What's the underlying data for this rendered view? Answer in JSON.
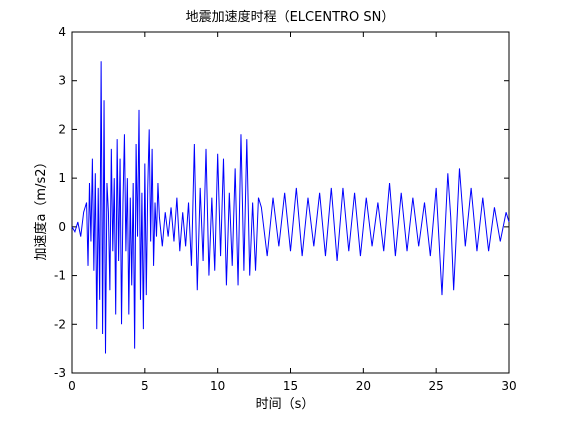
{
  "chart_data": {
    "type": "line",
    "title": "地震加速度时程（ELCENTRO SN）",
    "xlabel": "时间（s）",
    "ylabel": "加速度a（m/s2）",
    "xlim": [
      0,
      30
    ],
    "ylim": [
      -3,
      4
    ],
    "xticks": [
      0,
      5,
      10,
      15,
      20,
      25,
      30
    ],
    "yticks": [
      -3,
      -2,
      -1,
      0,
      1,
      2,
      3,
      4
    ],
    "grid": false,
    "legend": "none",
    "series": [
      {
        "color": "#0000ff",
        "x": [
          0,
          0.2,
          0.4,
          0.6,
          0.8,
          1.0,
          1.1,
          1.2,
          1.3,
          1.4,
          1.5,
          1.6,
          1.7,
          1.8,
          1.9,
          2.0,
          2.1,
          2.2,
          2.3,
          2.4,
          2.5,
          2.6,
          2.7,
          2.8,
          2.9,
          3.0,
          3.1,
          3.2,
          3.3,
          3.4,
          3.5,
          3.6,
          3.7,
          3.8,
          3.9,
          4.0,
          4.1,
          4.2,
          4.3,
          4.4,
          4.5,
          4.6,
          4.7,
          4.8,
          4.9,
          5.0,
          5.1,
          5.2,
          5.3,
          5.4,
          5.5,
          5.6,
          5.7,
          5.8,
          5.9,
          6.0,
          6.2,
          6.4,
          6.6,
          6.8,
          7.0,
          7.2,
          7.4,
          7.6,
          7.8,
          8.0,
          8.2,
          8.4,
          8.6,
          8.8,
          9.0,
          9.2,
          9.4,
          9.6,
          9.8,
          10.0,
          10.2,
          10.4,
          10.6,
          10.8,
          11.0,
          11.2,
          11.4,
          11.6,
          11.8,
          12.0,
          12.2,
          12.4,
          12.6,
          12.8,
          13.0,
          13.4,
          13.8,
          14.2,
          14.6,
          15.0,
          15.4,
          15.8,
          16.2,
          16.6,
          17.0,
          17.4,
          17.8,
          18.2,
          18.6,
          19.0,
          19.4,
          19.8,
          20.2,
          20.6,
          21.0,
          21.4,
          21.8,
          22.2,
          22.6,
          23.0,
          23.4,
          23.8,
          24.2,
          24.6,
          25.0,
          25.4,
          25.8,
          26.0,
          26.2,
          26.6,
          27.0,
          27.4,
          27.8,
          28.2,
          28.6,
          29.0,
          29.4,
          29.8,
          30.0
        ],
        "y": [
          0,
          -0.1,
          0.1,
          -0.2,
          0.3,
          0.5,
          -0.8,
          0.9,
          -0.3,
          1.4,
          -0.9,
          1.1,
          -2.1,
          0.8,
          -1.5,
          3.4,
          -2.2,
          2.6,
          -2.6,
          0.9,
          0.3,
          -1.3,
          1.6,
          -0.5,
          1.0,
          -1.8,
          1.8,
          -0.7,
          1.4,
          -2.0,
          0.5,
          1.9,
          -0.5,
          1.0,
          -1.8,
          0.6,
          -1.2,
          0.9,
          -2.5,
          1.7,
          -0.2,
          2.4,
          -1.5,
          0.7,
          -2.1,
          1.3,
          -1.4,
          0.8,
          2.0,
          -0.3,
          1.6,
          -0.8,
          0.5,
          -0.2,
          0.9,
          0.2,
          -0.4,
          0.3,
          -0.2,
          0.4,
          -0.3,
          0.6,
          -0.5,
          0.3,
          -0.4,
          0.5,
          -0.8,
          1.7,
          -1.3,
          0.8,
          -0.7,
          1.6,
          -1.0,
          0.6,
          -0.9,
          1.5,
          -0.6,
          1.4,
          -1.2,
          0.7,
          -0.8,
          1.2,
          -1.2,
          1.9,
          -0.9,
          1.8,
          -1.0,
          0.5,
          -0.9,
          0.6,
          0.4,
          -0.6,
          0.6,
          -0.4,
          0.7,
          -0.5,
          0.8,
          -0.6,
          0.6,
          -0.4,
          0.7,
          -0.6,
          0.8,
          -0.7,
          0.8,
          -0.5,
          0.7,
          -0.6,
          0.6,
          -0.4,
          0.5,
          -0.5,
          0.9,
          -0.6,
          0.7,
          -0.5,
          0.6,
          -0.4,
          0.5,
          -0.6,
          0.8,
          -1.4,
          1.1,
          0.2,
          -1.3,
          1.2,
          -0.4,
          0.8,
          -0.5,
          0.6,
          -0.5,
          0.4,
          -0.3,
          0.3,
          0.1
        ]
      }
    ]
  }
}
